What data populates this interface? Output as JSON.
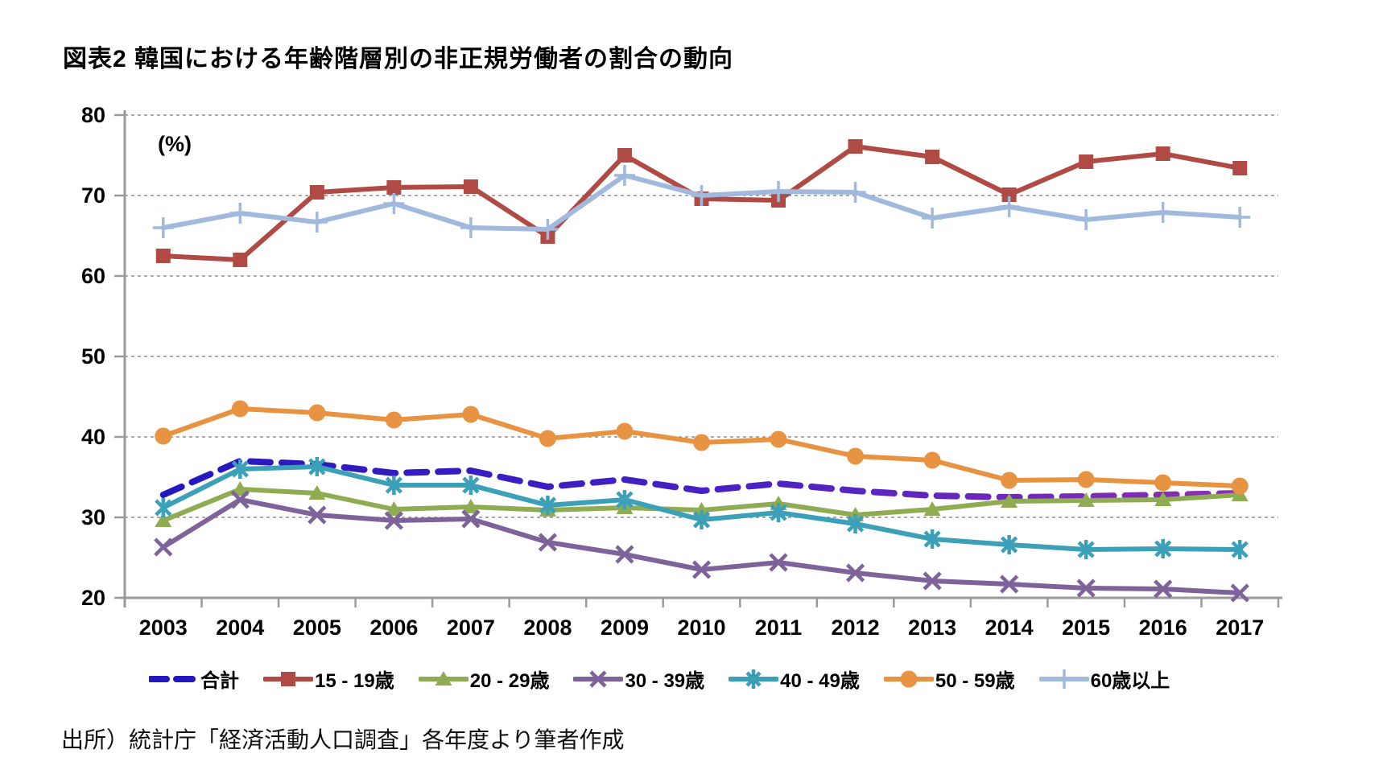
{
  "title": "図表2 韓国における年齢階層別の非正規労働者の割合の動向",
  "source": "出所）統計庁「経済活動人口調査」各年度より筆者作成",
  "chart_data": {
    "type": "line",
    "title": "図表2 韓国における年齢階層別の非正規労働者の割合の動向",
    "unit_label": "(%)",
    "xlabel": "",
    "ylabel": "(%)",
    "ylim": [
      20,
      80
    ],
    "ytick_step": 10,
    "grid": "horizontal-dashed",
    "legend_position": "bottom",
    "categories": [
      "2003",
      "2004",
      "2005",
      "2006",
      "2007",
      "2008",
      "2009",
      "2010",
      "2011",
      "2012",
      "2013",
      "2014",
      "2015",
      "2016",
      "2017"
    ],
    "series": [
      {
        "name": "合計",
        "marker": "none",
        "dashed": true,
        "color": "#2318BE",
        "color_end": "#8D2FB0",
        "values": [
          32.8,
          37.0,
          36.6,
          35.5,
          35.8,
          33.8,
          34.7,
          33.3,
          34.2,
          33.3,
          32.7,
          32.5,
          32.6,
          32.8,
          33.0
        ]
      },
      {
        "name": "15 - 19歳",
        "marker": "square",
        "dashed": false,
        "color": "#B04A45",
        "values": [
          62.5,
          62.0,
          70.4,
          71.0,
          71.1,
          64.9,
          75.0,
          69.6,
          69.4,
          76.1,
          74.8,
          70.1,
          74.2,
          75.2,
          73.4
        ]
      },
      {
        "name": "20 - 29歳",
        "marker": "triangle",
        "dashed": false,
        "color": "#8FAC52",
        "values": [
          29.6,
          33.5,
          33.0,
          31.0,
          31.3,
          30.9,
          31.2,
          30.9,
          31.7,
          30.3,
          31.0,
          32.0,
          32.1,
          32.2,
          32.8
        ]
      },
      {
        "name": "30 - 39歳",
        "marker": "x",
        "dashed": false,
        "color": "#7D6399",
        "values": [
          26.3,
          32.2,
          30.3,
          29.6,
          29.8,
          26.9,
          25.4,
          23.5,
          24.4,
          23.1,
          22.1,
          21.7,
          21.2,
          21.1,
          20.6
        ]
      },
      {
        "name": "40 - 49歳",
        "marker": "asterisk",
        "dashed": false,
        "color": "#3CA0B8",
        "values": [
          31.2,
          36.0,
          36.3,
          34.0,
          34.0,
          31.5,
          32.2,
          29.7,
          30.6,
          29.2,
          27.3,
          26.6,
          26.0,
          26.1,
          26.0
        ]
      },
      {
        "name": "50 - 59歳",
        "marker": "circle",
        "dashed": false,
        "color": "#E89342",
        "values": [
          40.1,
          43.5,
          43.0,
          42.1,
          42.8,
          39.8,
          40.7,
          39.3,
          39.7,
          37.6,
          37.1,
          34.6,
          34.7,
          34.3,
          33.9
        ]
      },
      {
        "name": "60歳以上",
        "marker": "plus",
        "dashed": false,
        "color": "#A0B9DC",
        "values": [
          66.0,
          67.8,
          66.7,
          69.0,
          66.0,
          65.8,
          72.5,
          70.0,
          70.5,
          70.4,
          67.2,
          68.6,
          67.0,
          67.9,
          67.3
        ]
      }
    ]
  }
}
